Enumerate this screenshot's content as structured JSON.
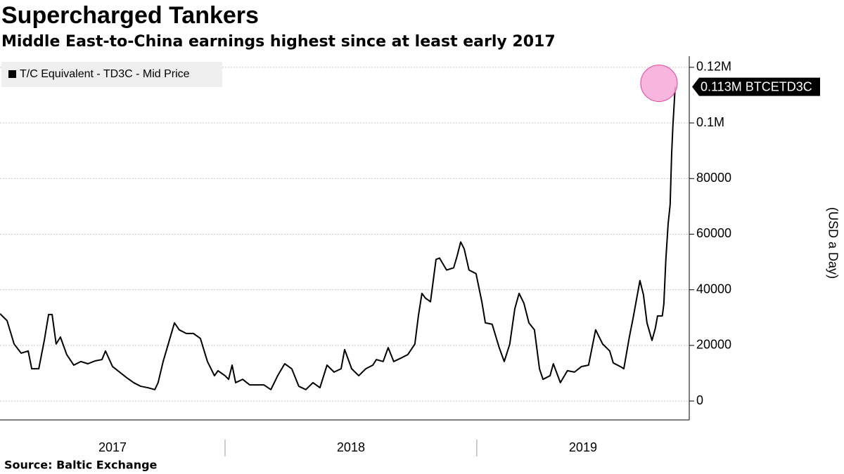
{
  "chart_data": {
    "type": "line",
    "title": "Supercharged Tankers",
    "subtitle": "Middle East-to-China earnings highest since at least early 2017",
    "y_axis_label": "(USD a Day)",
    "source": "Source: Baltic Exchange",
    "x": [
      2017.106,
      2017.134,
      2017.162,
      2017.19,
      2017.218,
      2017.232,
      2017.26,
      2017.282,
      2017.299,
      2017.313,
      2017.329,
      2017.346,
      2017.371,
      2017.399,
      2017.427,
      2017.455,
      2017.483,
      2017.511,
      2017.525,
      2017.553,
      2017.581,
      2017.609,
      2017.637,
      2017.665,
      2017.693,
      2017.721,
      2017.734,
      2017.754,
      2017.776,
      2017.799,
      2017.818,
      2017.846,
      2017.874,
      2017.902,
      2017.93,
      2017.958,
      2017.972,
      2018.0,
      2018.014,
      2018.028,
      2018.042,
      2018.07,
      2018.098,
      2018.126,
      2018.154,
      2018.182,
      2018.209,
      2018.237,
      2018.265,
      2018.293,
      2018.321,
      2018.349,
      2018.377,
      2018.405,
      2018.433,
      2018.461,
      2018.475,
      2018.503,
      2018.531,
      2018.559,
      2018.587,
      2018.601,
      2018.628,
      2018.648,
      2018.67,
      2018.698,
      2018.726,
      2018.754,
      2018.768,
      2018.782,
      2018.796,
      2018.816,
      2018.838,
      2018.852,
      2018.88,
      2018.908,
      2018.922,
      2018.936,
      2018.95,
      2018.969,
      2018.997,
      2019.02,
      2019.034,
      2019.061,
      2019.089,
      2019.109,
      2019.131,
      2019.151,
      2019.168,
      2019.187,
      2019.207,
      2019.229,
      2019.249,
      2019.263,
      2019.291,
      2019.304,
      2019.332,
      2019.36,
      2019.388,
      2019.416,
      2019.444,
      2019.472,
      2019.5,
      2019.528,
      2019.542,
      2019.57,
      2019.584,
      2019.606,
      2019.62,
      2019.648,
      2019.662,
      2019.676,
      2019.696,
      2019.709,
      2019.718,
      2019.737,
      2019.743,
      2019.751,
      2019.76,
      2019.768,
      2019.774,
      2019.779,
      2019.788
    ],
    "series": [
      {
        "name": "T/C Equivalent - TD3C - Mid Price",
        "color": "#000000",
        "values": [
          31400,
          28900,
          20500,
          17200,
          18000,
          11600,
          11600,
          21800,
          31100,
          31100,
          20500,
          23000,
          16700,
          12900,
          14200,
          13400,
          14400,
          14900,
          18000,
          12400,
          10400,
          8400,
          6600,
          5300,
          4800,
          4100,
          6600,
          14200,
          21000,
          28100,
          25600,
          24300,
          24300,
          22500,
          14200,
          9100,
          10900,
          9100,
          7800,
          12900,
          6600,
          7800,
          5800,
          5800,
          5800,
          4100,
          9100,
          13400,
          11600,
          5300,
          4100,
          6600,
          4800,
          12900,
          10400,
          11600,
          18500,
          11600,
          9100,
          11600,
          12900,
          14900,
          14200,
          19200,
          14200,
          15400,
          16700,
          20500,
          30600,
          38700,
          37000,
          35700,
          50900,
          51400,
          47100,
          47900,
          52200,
          57200,
          54700,
          47100,
          45800,
          35700,
          28100,
          27600,
          19200,
          14200,
          20500,
          33200,
          38700,
          35200,
          28100,
          25600,
          11600,
          7800,
          9100,
          13400,
          6600,
          10900,
          10400,
          12400,
          12900,
          25600,
          20500,
          18000,
          13700,
          12400,
          11600,
          23000,
          29400,
          43300,
          38200,
          28100,
          21800,
          26100,
          30600,
          30600,
          34900,
          50900,
          63600,
          70600,
          88900,
          99000,
          113000
        ]
      }
    ],
    "last_value_label": "0.113M BTCETD3C",
    "xlim": [
      2017.106,
      2019.844
    ],
    "xticks": [
      2018,
      2019
    ],
    "year_labels": [
      "2017",
      "2018",
      "2019"
    ],
    "ylim": [
      -6800,
      124000
    ],
    "yticks": [
      0,
      20000,
      40000,
      60000,
      80000,
      {
        "value": 100000,
        "label": "0.1M"
      },
      {
        "value": 120000,
        "label": "0.12M"
      }
    ],
    "grid": true,
    "legend": "top-left"
  }
}
